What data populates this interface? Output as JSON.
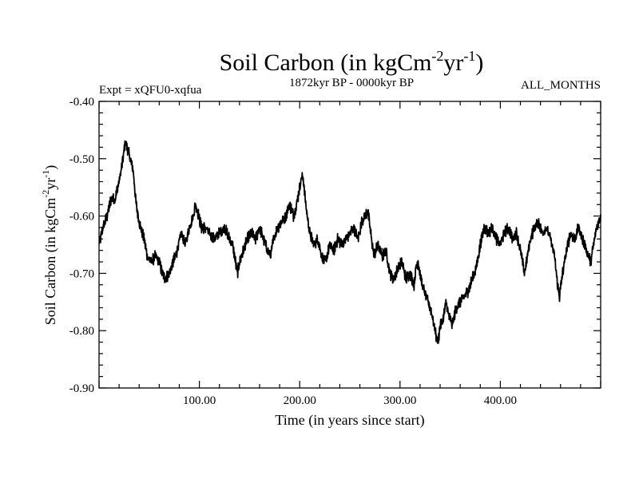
{
  "chart_data": {
    "type": "line",
    "title": {
      "main": "Soil Carbon (in kgCm",
      "sup1": "-2",
      "mid": "yr",
      "sup2": "-1",
      "end": ")"
    },
    "ylabel": {
      "main": "Soil Carbon (in kgCm",
      "sup1": "-2",
      "mid": "yr",
      "sup2": "-1",
      "end": ")"
    },
    "subtitle_left": "Expt = xQFU0-xqfua",
    "subtitle_center": "1872kyr BP - 0000kyr BP",
    "subtitle_right": "ALL_MONTHS",
    "xlabel": "Time (in years since start)",
    "xlim": [
      0,
      500
    ],
    "ylim": [
      -0.9,
      -0.4
    ],
    "xticks": [
      100,
      200,
      300,
      400
    ],
    "xtick_labels": [
      "100.00",
      "200.00",
      "300.00",
      "400.00"
    ],
    "yticks": [
      -0.9,
      -0.8,
      -0.7,
      -0.6,
      -0.5,
      -0.4
    ],
    "ytick_labels": [
      "-0.90",
      "-0.80",
      "-0.70",
      "-0.60",
      "-0.50",
      "-0.40"
    ],
    "grid": false,
    "series": [
      {
        "name": "Soil Carbon",
        "color": "#000000",
        "noise_amplitude": 0.008,
        "anchors": [
          [
            0,
            -0.65
          ],
          [
            4,
            -0.62
          ],
          [
            8,
            -0.6
          ],
          [
            12,
            -0.57
          ],
          [
            16,
            -0.57
          ],
          [
            20,
            -0.54
          ],
          [
            24,
            -0.5
          ],
          [
            26,
            -0.47
          ],
          [
            28,
            -0.48
          ],
          [
            31,
            -0.5
          ],
          [
            34,
            -0.52
          ],
          [
            37,
            -0.58
          ],
          [
            40,
            -0.61
          ],
          [
            43,
            -0.63
          ],
          [
            45,
            -0.64
          ],
          [
            48,
            -0.67
          ],
          [
            52,
            -0.68
          ],
          [
            56,
            -0.67
          ],
          [
            60,
            -0.68
          ],
          [
            63,
            -0.7
          ],
          [
            66,
            -0.71
          ],
          [
            70,
            -0.7
          ],
          [
            74,
            -0.68
          ],
          [
            78,
            -0.66
          ],
          [
            82,
            -0.63
          ],
          [
            86,
            -0.65
          ],
          [
            90,
            -0.62
          ],
          [
            94,
            -0.6
          ],
          [
            96,
            -0.58
          ],
          [
            98,
            -0.59
          ],
          [
            102,
            -0.62
          ],
          [
            106,
            -0.62
          ],
          [
            110,
            -0.63
          ],
          [
            115,
            -0.64
          ],
          [
            120,
            -0.63
          ],
          [
            125,
            -0.62
          ],
          [
            130,
            -0.64
          ],
          [
            133,
            -0.65
          ],
          [
            136,
            -0.68
          ],
          [
            138,
            -0.7
          ],
          [
            140,
            -0.68
          ],
          [
            144,
            -0.66
          ],
          [
            148,
            -0.64
          ],
          [
            152,
            -0.63
          ],
          [
            156,
            -0.64
          ],
          [
            160,
            -0.62
          ],
          [
            164,
            -0.64
          ],
          [
            168,
            -0.66
          ],
          [
            171,
            -0.67
          ],
          [
            174,
            -0.64
          ],
          [
            178,
            -0.62
          ],
          [
            182,
            -0.61
          ],
          [
            186,
            -0.6
          ],
          [
            190,
            -0.58
          ],
          [
            194,
            -0.6
          ],
          [
            198,
            -0.57
          ],
          [
            202,
            -0.53
          ],
          [
            204,
            -0.54
          ],
          [
            206,
            -0.58
          ],
          [
            210,
            -0.63
          ],
          [
            214,
            -0.65
          ],
          [
            218,
            -0.64
          ],
          [
            222,
            -0.67
          ],
          [
            226,
            -0.68
          ],
          [
            230,
            -0.65
          ],
          [
            234,
            -0.66
          ],
          [
            238,
            -0.64
          ],
          [
            242,
            -0.65
          ],
          [
            246,
            -0.64
          ],
          [
            250,
            -0.63
          ],
          [
            254,
            -0.62
          ],
          [
            258,
            -0.64
          ],
          [
            262,
            -0.61
          ],
          [
            265,
            -0.6
          ],
          [
            268,
            -0.59
          ],
          [
            270,
            -0.62
          ],
          [
            274,
            -0.67
          ],
          [
            278,
            -0.65
          ],
          [
            282,
            -0.67
          ],
          [
            286,
            -0.66
          ],
          [
            290,
            -0.7
          ],
          [
            294,
            -0.71
          ],
          [
            298,
            -0.69
          ],
          [
            302,
            -0.68
          ],
          [
            306,
            -0.71
          ],
          [
            310,
            -0.7
          ],
          [
            314,
            -0.72
          ],
          [
            316,
            -0.69
          ],
          [
            318,
            -0.68
          ],
          [
            322,
            -0.72
          ],
          [
            326,
            -0.74
          ],
          [
            330,
            -0.76
          ],
          [
            333,
            -0.78
          ],
          [
            336,
            -0.81
          ],
          [
            338,
            -0.82
          ],
          [
            340,
            -0.79
          ],
          [
            343,
            -0.78
          ],
          [
            346,
            -0.75
          ],
          [
            348,
            -0.77
          ],
          [
            352,
            -0.79
          ],
          [
            356,
            -0.76
          ],
          [
            360,
            -0.75
          ],
          [
            364,
            -0.74
          ],
          [
            368,
            -0.73
          ],
          [
            372,
            -0.71
          ],
          [
            376,
            -0.69
          ],
          [
            380,
            -0.65
          ],
          [
            384,
            -0.62
          ],
          [
            388,
            -0.63
          ],
          [
            392,
            -0.62
          ],
          [
            396,
            -0.64
          ],
          [
            400,
            -0.65
          ],
          [
            404,
            -0.63
          ],
          [
            408,
            -0.62
          ],
          [
            412,
            -0.64
          ],
          [
            416,
            -0.63
          ],
          [
            420,
            -0.66
          ],
          [
            424,
            -0.7
          ],
          [
            426,
            -0.68
          ],
          [
            430,
            -0.64
          ],
          [
            434,
            -0.62
          ],
          [
            438,
            -0.61
          ],
          [
            442,
            -0.63
          ],
          [
            446,
            -0.62
          ],
          [
            450,
            -0.64
          ],
          [
            454,
            -0.67
          ],
          [
            457,
            -0.72
          ],
          [
            459,
            -0.74
          ],
          [
            462,
            -0.7
          ],
          [
            466,
            -0.66
          ],
          [
            470,
            -0.63
          ],
          [
            474,
            -0.64
          ],
          [
            478,
            -0.62
          ],
          [
            482,
            -0.64
          ],
          [
            486,
            -0.66
          ],
          [
            490,
            -0.68
          ],
          [
            493,
            -0.65
          ],
          [
            496,
            -0.62
          ],
          [
            500,
            -0.6
          ]
        ]
      }
    ]
  }
}
